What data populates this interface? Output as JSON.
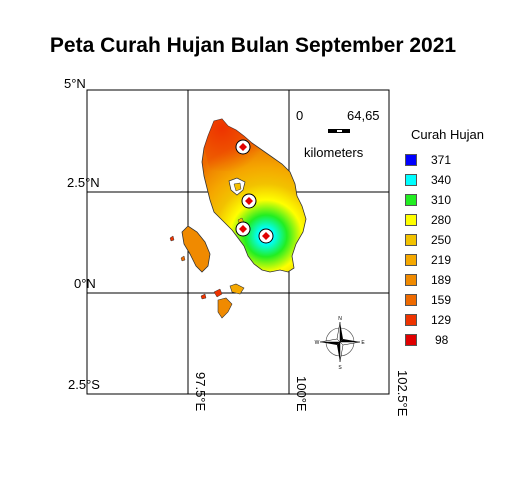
{
  "title": "Peta Curah Hujan Bulan September 2021",
  "lat_labels": [
    "5°N",
    "2.5°N",
    "0°N",
    "2.5°S"
  ],
  "lon_labels": [
    "97.5°E",
    "100°E",
    "102.5°E"
  ],
  "scale_bar": {
    "start": "0",
    "end": "64,65",
    "unit": "kilometers"
  },
  "legend": {
    "title": "Curah Hujan",
    "items": [
      {
        "label": "371",
        "color": "#0000ff"
      },
      {
        "label": "340",
        "color": "#00ffff"
      },
      {
        "label": "310",
        "color": "#22ee22"
      },
      {
        "label": "280",
        "color": "#ffff00"
      },
      {
        "label": "250",
        "color": "#f2c200"
      },
      {
        "label": "219",
        "color": "#f5a800"
      },
      {
        "label": "189",
        "color": "#f08a00"
      },
      {
        "label": "159",
        "color": "#ee6a00"
      },
      {
        "label": "129",
        "color": "#ee3300"
      },
      {
        "label": "98",
        "color": "#e00000"
      }
    ]
  },
  "icons": {
    "north_arrow": "compass-rose-icon",
    "station": "station-marker-icon"
  }
}
